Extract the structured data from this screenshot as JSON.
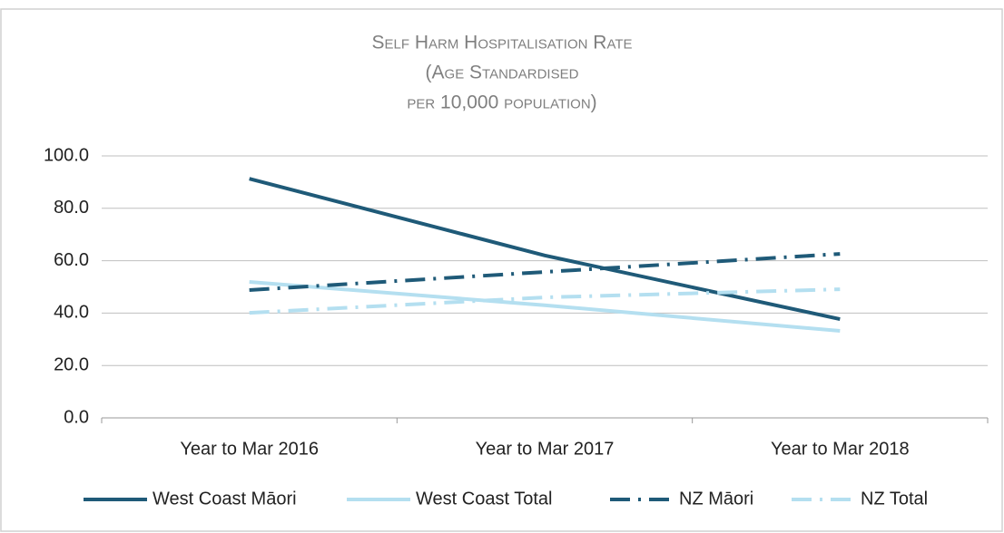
{
  "chart_data": {
    "type": "line",
    "title": [
      "Self Harm Hospitalisation Rate",
      "(Age Standardised",
      "per 10,000 population)"
    ],
    "categories": [
      "Year to Mar 2016",
      "Year to Mar 2017",
      "Year to Mar 2018"
    ],
    "series": [
      {
        "name": "West Coast Māori",
        "color": "#1f5a78",
        "style": "solid",
        "values": [
          91.3,
          62.0,
          37.7
        ]
      },
      {
        "name": "West Coast Total",
        "color": "#b4dff0",
        "style": "solid",
        "values": [
          51.9,
          43.0,
          33.2
        ]
      },
      {
        "name": "NZ Māori",
        "color": "#1f5a78",
        "style": "dash-dot",
        "values": [
          48.8,
          55.7,
          62.6
        ]
      },
      {
        "name": "NZ Total",
        "color": "#b4dff0",
        "style": "dash-dot",
        "values": [
          40.1,
          46.0,
          49.1
        ]
      }
    ],
    "ylim": [
      0,
      100
    ],
    "yticks": [
      {
        "value": 0,
        "label": "0.0"
      },
      {
        "value": 20,
        "label": "20.0"
      },
      {
        "value": 40,
        "label": "40.0"
      },
      {
        "value": 60,
        "label": "60.0"
      },
      {
        "value": 80,
        "label": "80.0"
      },
      {
        "value": 100,
        "label": "100.0"
      }
    ],
    "grid": true,
    "legend": "bottom"
  }
}
